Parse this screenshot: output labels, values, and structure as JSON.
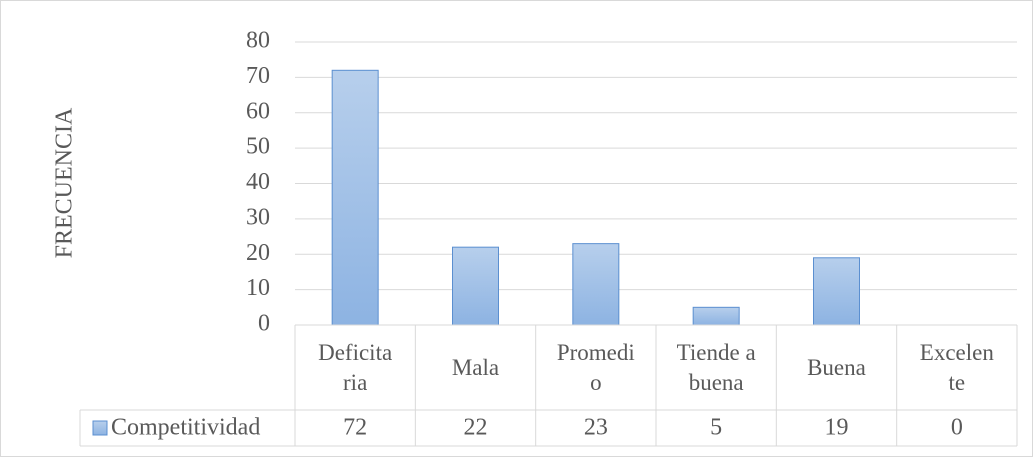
{
  "chart_data": {
    "type": "bar",
    "y_label": "FRECUENCIA",
    "categories": [
      "Deficitaria",
      "Mala",
      "Promedio",
      "Tiende a buena",
      "Buena",
      "Excelente"
    ],
    "series": [
      {
        "name": "Competitividad",
        "color": "#9dbde6",
        "values": [
          72,
          22,
          23,
          5,
          19,
          0
        ]
      }
    ],
    "ylim": [
      0,
      80
    ],
    "yticks": [
      0,
      10,
      20,
      30,
      40,
      50,
      60,
      70,
      80
    ],
    "grid": true,
    "data_table": true
  }
}
